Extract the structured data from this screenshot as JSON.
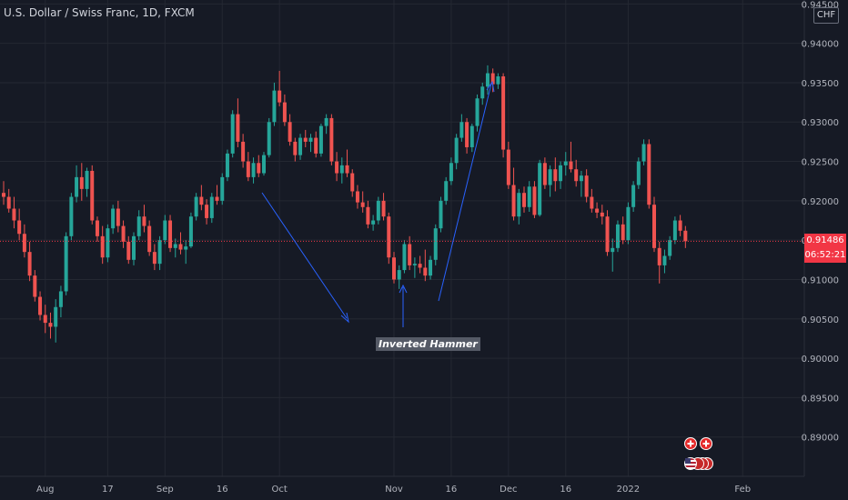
{
  "header": {
    "title": "U.S. Dollar / Swiss Franc, 1D, FXCM",
    "currency": "CHF"
  },
  "price_labels": {
    "last_price": "0.91486",
    "countdown": "06:52:21"
  },
  "annotation": {
    "label": "Inverted Hammer"
  },
  "colors": {
    "background": "#161a25",
    "up": "#26a69a",
    "down": "#ef5350",
    "arrow": "#2962ff",
    "grid": "#242832",
    "last_price": "#f23645"
  },
  "events": {
    "ch_flags": 2,
    "us_flags": 4,
    "ch_icon": "swiss-flag-icon",
    "us_icon": "us-flag-icon"
  },
  "chart_data": {
    "type": "candlestick",
    "title": "U.S. Dollar / Swiss Franc, 1D, FXCM",
    "ylim": [
      0.885,
      0.9455
    ],
    "yticks": [
      "0.94500",
      "0.94000",
      "0.93500",
      "0.93000",
      "0.92500",
      "0.92000",
      "0.91500",
      "0.91000",
      "0.90500",
      "0.90000",
      "0.89500",
      "0.89000"
    ],
    "xticks": [
      {
        "label": "Aug",
        "index": 8
      },
      {
        "label": "17",
        "index": 20
      },
      {
        "label": "Sep",
        "index": 31
      },
      {
        "label": "16",
        "index": 42
      },
      {
        "label": "Oct",
        "index": 53
      },
      {
        "label": "Nov",
        "index": 75
      },
      {
        "label": "16",
        "index": 86
      },
      {
        "label": "Dec",
        "index": 97
      },
      {
        "label": "16",
        "index": 108
      },
      {
        "label": "2022",
        "index": 120
      },
      {
        "label": "Feb",
        "index": 142
      }
    ],
    "last_price": 0.91486,
    "candles": [
      [
        0.921,
        0.9225,
        0.9195,
        0.9205
      ],
      [
        0.9205,
        0.9215,
        0.9185,
        0.919
      ],
      [
        0.919,
        0.9205,
        0.9165,
        0.9175
      ],
      [
        0.9175,
        0.919,
        0.915,
        0.9158
      ],
      [
        0.9158,
        0.917,
        0.9128,
        0.9135
      ],
      [
        0.9135,
        0.9148,
        0.9098,
        0.9105
      ],
      [
        0.9105,
        0.9112,
        0.9072,
        0.9078
      ],
      [
        0.9078,
        0.9085,
        0.9048,
        0.9055
      ],
      [
        0.9055,
        0.9068,
        0.9032,
        0.9045
      ],
      [
        0.9045,
        0.9058,
        0.9025,
        0.904
      ],
      [
        0.904,
        0.9075,
        0.902,
        0.9065
      ],
      [
        0.9065,
        0.9092,
        0.9052,
        0.9085
      ],
      [
        0.9085,
        0.916,
        0.908,
        0.9155
      ],
      [
        0.9155,
        0.921,
        0.915,
        0.9205
      ],
      [
        0.9205,
        0.9245,
        0.9198,
        0.923
      ],
      [
        0.923,
        0.9248,
        0.92,
        0.9215
      ],
      [
        0.9215,
        0.9242,
        0.9205,
        0.9238
      ],
      [
        0.9238,
        0.9245,
        0.917,
        0.9175
      ],
      [
        0.9175,
        0.918,
        0.9148,
        0.9155
      ],
      [
        0.9155,
        0.9168,
        0.912,
        0.9128
      ],
      [
        0.9128,
        0.917,
        0.9122,
        0.9165
      ],
      [
        0.9165,
        0.9195,
        0.9158,
        0.919
      ],
      [
        0.919,
        0.92,
        0.916,
        0.9168
      ],
      [
        0.9168,
        0.9175,
        0.914,
        0.9148
      ],
      [
        0.9148,
        0.9155,
        0.912,
        0.9125
      ],
      [
        0.9125,
        0.916,
        0.9118,
        0.9155
      ],
      [
        0.9155,
        0.9188,
        0.915,
        0.918
      ],
      [
        0.918,
        0.9195,
        0.916,
        0.9168
      ],
      [
        0.9168,
        0.9175,
        0.913,
        0.9135
      ],
      [
        0.9135,
        0.9145,
        0.9112,
        0.912
      ],
      [
        0.912,
        0.9155,
        0.9112,
        0.915
      ],
      [
        0.915,
        0.9182,
        0.9145,
        0.9175
      ],
      [
        0.9175,
        0.9182,
        0.9135,
        0.914
      ],
      [
        0.914,
        0.9152,
        0.9128,
        0.9145
      ],
      [
        0.9145,
        0.916,
        0.9132,
        0.9138
      ],
      [
        0.9138,
        0.915,
        0.912,
        0.9142
      ],
      [
        0.9142,
        0.9185,
        0.914,
        0.918
      ],
      [
        0.918,
        0.921,
        0.9175,
        0.9205
      ],
      [
        0.9205,
        0.922,
        0.9188,
        0.9195
      ],
      [
        0.9195,
        0.9202,
        0.917,
        0.9178
      ],
      [
        0.9178,
        0.921,
        0.9172,
        0.9205
      ],
      [
        0.9205,
        0.922,
        0.9195,
        0.92
      ],
      [
        0.92,
        0.9235,
        0.9195,
        0.923
      ],
      [
        0.923,
        0.9265,
        0.9225,
        0.926
      ],
      [
        0.926,
        0.9315,
        0.9255,
        0.931
      ],
      [
        0.931,
        0.933,
        0.9268,
        0.9275
      ],
      [
        0.9275,
        0.9285,
        0.9242,
        0.925
      ],
      [
        0.925,
        0.9262,
        0.9225,
        0.923
      ],
      [
        0.923,
        0.9255,
        0.9222,
        0.9248
      ],
      [
        0.9248,
        0.9258,
        0.923,
        0.9235
      ],
      [
        0.9235,
        0.9262,
        0.9232,
        0.9258
      ],
      [
        0.9258,
        0.9305,
        0.9255,
        0.93
      ],
      [
        0.93,
        0.935,
        0.9295,
        0.934
      ],
      [
        0.934,
        0.9365,
        0.932,
        0.9325
      ],
      [
        0.9325,
        0.9335,
        0.9295,
        0.93
      ],
      [
        0.93,
        0.931,
        0.927,
        0.9275
      ],
      [
        0.9275,
        0.928,
        0.925,
        0.9258
      ],
      [
        0.9258,
        0.9285,
        0.9252,
        0.928
      ],
      [
        0.928,
        0.929,
        0.9268,
        0.9275
      ],
      [
        0.9275,
        0.9285,
        0.9262,
        0.928
      ],
      [
        0.928,
        0.9288,
        0.9255,
        0.926
      ],
      [
        0.926,
        0.9298,
        0.9256,
        0.9295
      ],
      [
        0.9295,
        0.931,
        0.9285,
        0.9305
      ],
      [
        0.9305,
        0.931,
        0.9245,
        0.925
      ],
      [
        0.925,
        0.9262,
        0.9225,
        0.9235
      ],
      [
        0.9235,
        0.9255,
        0.9222,
        0.9245
      ],
      [
        0.9245,
        0.9265,
        0.923,
        0.9235
      ],
      [
        0.9235,
        0.924,
        0.9205,
        0.9212
      ],
      [
        0.9212,
        0.922,
        0.919,
        0.9198
      ],
      [
        0.9198,
        0.9212,
        0.9185,
        0.9192
      ],
      [
        0.9192,
        0.92,
        0.9165,
        0.917
      ],
      [
        0.917,
        0.9182,
        0.9162,
        0.9175
      ],
      [
        0.9175,
        0.9205,
        0.917,
        0.92
      ],
      [
        0.92,
        0.921,
        0.9175,
        0.918
      ],
      [
        0.918,
        0.9185,
        0.912,
        0.9128
      ],
      [
        0.9128,
        0.9135,
        0.9095,
        0.91
      ],
      [
        0.91,
        0.9118,
        0.9088,
        0.9112
      ],
      [
        0.9112,
        0.915,
        0.9108,
        0.9145
      ],
      [
        0.9145,
        0.9155,
        0.9112,
        0.9118
      ],
      [
        0.9118,
        0.9128,
        0.9102,
        0.912
      ],
      [
        0.912,
        0.913,
        0.9108,
        0.9115
      ],
      [
        0.9115,
        0.9138,
        0.9098,
        0.9105
      ],
      [
        0.9105,
        0.913,
        0.91,
        0.9125
      ],
      [
        0.9125,
        0.917,
        0.9118,
        0.9165
      ],
      [
        0.9165,
        0.9205,
        0.916,
        0.92
      ],
      [
        0.92,
        0.923,
        0.9195,
        0.9225
      ],
      [
        0.9225,
        0.9255,
        0.922,
        0.9248
      ],
      [
        0.9248,
        0.9285,
        0.924,
        0.928
      ],
      [
        0.928,
        0.931,
        0.9275,
        0.93
      ],
      [
        0.93,
        0.9305,
        0.926,
        0.9268
      ],
      [
        0.9268,
        0.9298,
        0.9262,
        0.9295
      ],
      [
        0.9295,
        0.9335,
        0.9288,
        0.933
      ],
      [
        0.933,
        0.935,
        0.9322,
        0.9345
      ],
      [
        0.9345,
        0.9372,
        0.9335,
        0.9362
      ],
      [
        0.9362,
        0.9368,
        0.9338,
        0.9348
      ],
      [
        0.9348,
        0.9362,
        0.9342,
        0.9358
      ],
      [
        0.9358,
        0.9362,
        0.9255,
        0.9265
      ],
      [
        0.9265,
        0.9275,
        0.9215,
        0.922
      ],
      [
        0.922,
        0.9242,
        0.9175,
        0.918
      ],
      [
        0.918,
        0.9215,
        0.917,
        0.921
      ],
      [
        0.921,
        0.9218,
        0.9185,
        0.9192
      ],
      [
        0.9192,
        0.9225,
        0.9186,
        0.9218
      ],
      [
        0.9218,
        0.9225,
        0.9178,
        0.9182
      ],
      [
        0.9182,
        0.9252,
        0.918,
        0.9248
      ],
      [
        0.9248,
        0.9255,
        0.9215,
        0.922
      ],
      [
        0.922,
        0.9245,
        0.9205,
        0.924
      ],
      [
        0.924,
        0.9255,
        0.9212,
        0.9225
      ],
      [
        0.9225,
        0.925,
        0.9215,
        0.9245
      ],
      [
        0.9245,
        0.9262,
        0.9232,
        0.925
      ],
      [
        0.925,
        0.9275,
        0.9236,
        0.924
      ],
      [
        0.924,
        0.9252,
        0.9218,
        0.9225
      ],
      [
        0.9225,
        0.9238,
        0.9205,
        0.9232
      ],
      [
        0.9232,
        0.924,
        0.9198,
        0.9205
      ],
      [
        0.9205,
        0.9215,
        0.9185,
        0.919
      ],
      [
        0.919,
        0.9198,
        0.9178,
        0.9185
      ],
      [
        0.9185,
        0.9195,
        0.917,
        0.918
      ],
      [
        0.918,
        0.9188,
        0.913,
        0.9135
      ],
      [
        0.9135,
        0.9152,
        0.911,
        0.914
      ],
      [
        0.914,
        0.9175,
        0.9135,
        0.917
      ],
      [
        0.917,
        0.918,
        0.9145,
        0.915
      ],
      [
        0.915,
        0.9198,
        0.9145,
        0.9192
      ],
      [
        0.9192,
        0.9225,
        0.9186,
        0.922
      ],
      [
        0.922,
        0.9255,
        0.9215,
        0.925
      ],
      [
        0.925,
        0.9278,
        0.9245,
        0.9272
      ],
      [
        0.9272,
        0.9278,
        0.919,
        0.9195
      ],
      [
        0.9195,
        0.9205,
        0.9135,
        0.914
      ],
      [
        0.914,
        0.9148,
        0.9095,
        0.9118
      ],
      [
        0.9118,
        0.9138,
        0.9108,
        0.913
      ],
      [
        0.913,
        0.9155,
        0.9125,
        0.915
      ],
      [
        0.915,
        0.918,
        0.9145,
        0.9175
      ],
      [
        0.9175,
        0.9182,
        0.9155,
        0.9162
      ],
      [
        0.9162,
        0.9168,
        0.914,
        0.91486
      ]
    ]
  }
}
